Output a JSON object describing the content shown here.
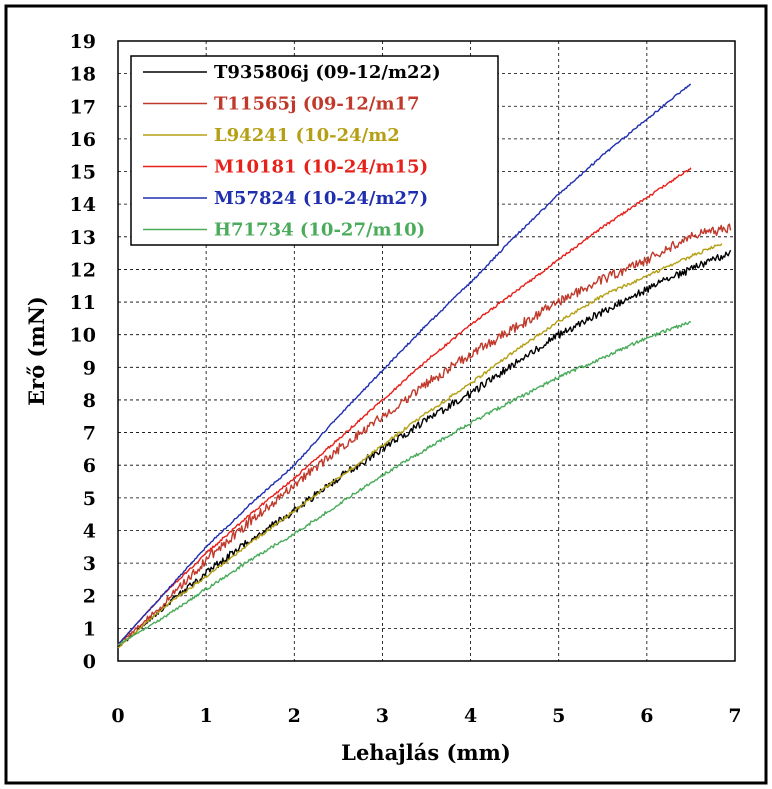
{
  "chart_data": {
    "type": "line",
    "title": "",
    "xlabel": "Lehajlás (mm)",
    "ylabel": "Erő (mN)",
    "xlim": [
      0,
      7
    ],
    "ylim": [
      0,
      19
    ],
    "x_ticks": [
      "0",
      "1",
      "2",
      "3",
      "4",
      "5",
      "6",
      "7"
    ],
    "y_ticks": [
      "0",
      "1",
      "2",
      "3",
      "4",
      "5",
      "6",
      "7",
      "8",
      "9",
      "10",
      "11",
      "12",
      "13",
      "14",
      "15",
      "16",
      "17",
      "18",
      "19"
    ],
    "grid": true,
    "legend_position": "top-left",
    "series": [
      {
        "name": "T935806j (09-12/m22)",
        "color": "#000000",
        "noise": 0.12,
        "x": [
          0,
          0.5,
          1,
          1.5,
          2,
          2.5,
          3,
          3.5,
          4,
          4.5,
          5,
          5.5,
          6,
          6.5,
          6.95
        ],
        "y": [
          0.4,
          1.6,
          2.7,
          3.7,
          4.6,
          5.6,
          6.5,
          7.4,
          8.2,
          9.1,
          10.0,
          10.7,
          11.4,
          12.0,
          12.5
        ]
      },
      {
        "name": "T11565j (09-12/m17",
        "color": "#c0392b",
        "noise": 0.15,
        "x": [
          0,
          0.5,
          1,
          1.5,
          2,
          2.5,
          3,
          3.5,
          4,
          4.5,
          5,
          5.5,
          6,
          6.5,
          6.95
        ],
        "y": [
          0.5,
          1.7,
          3.1,
          4.3,
          5.4,
          6.5,
          7.5,
          8.5,
          9.4,
          10.2,
          11.0,
          11.7,
          12.3,
          13.0,
          13.3
        ]
      },
      {
        "name": "L94241 (10-24/m2",
        "color": "#b5a015",
        "noise": 0.05,
        "x": [
          0,
          0.5,
          1,
          1.5,
          2,
          2.5,
          3,
          3.5,
          4,
          4.5,
          5,
          5.5,
          6,
          6.5,
          6.85
        ],
        "y": [
          0.4,
          1.6,
          2.6,
          3.6,
          4.6,
          5.6,
          6.6,
          7.6,
          8.5,
          9.5,
          10.4,
          11.2,
          11.8,
          12.4,
          12.8
        ]
      },
      {
        "name": "M10181 (10-24/m15)",
        "color": "#e8201a",
        "noise": 0.04,
        "x": [
          0,
          0.5,
          1,
          1.5,
          2,
          2.5,
          3,
          3.5,
          4,
          4.5,
          5,
          5.5,
          6,
          6.5
        ],
        "y": [
          0.5,
          2.0,
          3.3,
          4.5,
          5.6,
          6.8,
          8.0,
          9.2,
          10.3,
          11.3,
          12.3,
          13.3,
          14.2,
          15.1
        ]
      },
      {
        "name": "M57824 (10-24/m27)",
        "color": "#1f2fb0",
        "noise": 0.03,
        "x": [
          0,
          0.5,
          1,
          1.5,
          2,
          2.5,
          3,
          3.5,
          4,
          4.5,
          5,
          5.5,
          6,
          6.5
        ],
        "y": [
          0.5,
          2.0,
          3.5,
          4.8,
          6.0,
          7.5,
          8.9,
          10.3,
          11.6,
          13.0,
          14.3,
          15.5,
          16.6,
          17.7
        ]
      },
      {
        "name": "H71734 (10-27/m10)",
        "color": "#4aab5a",
        "noise": 0.05,
        "x": [
          0,
          0.5,
          1,
          1.5,
          2,
          2.5,
          3,
          3.5,
          4,
          4.5,
          5,
          5.5,
          6,
          6.5
        ],
        "y": [
          0.5,
          1.3,
          2.2,
          3.1,
          3.9,
          4.8,
          5.7,
          6.5,
          7.3,
          8.0,
          8.7,
          9.3,
          9.9,
          10.4
        ]
      }
    ]
  }
}
